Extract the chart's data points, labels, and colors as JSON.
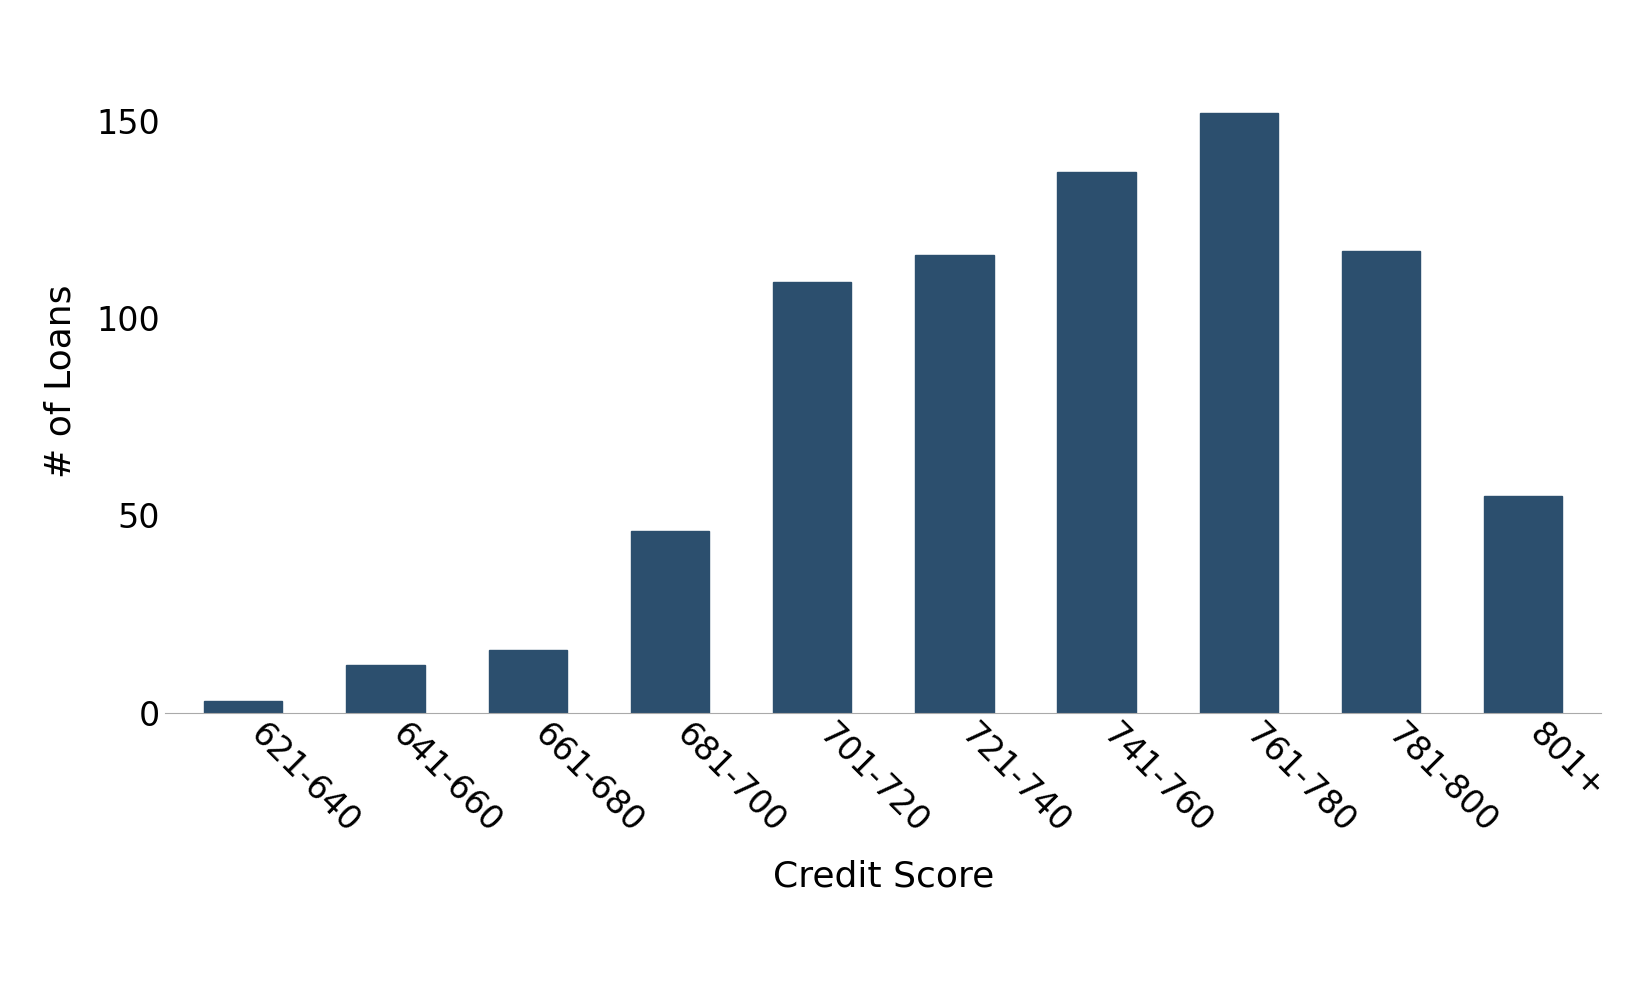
{
  "categories": [
    "621-640",
    "641-660",
    "661-680",
    "681-700",
    "701-720",
    "721-740",
    "741-760",
    "761-780",
    "781-800",
    "801+"
  ],
  "values": [
    3,
    12,
    16,
    46,
    109,
    116,
    137,
    152,
    117,
    55
  ],
  "bar_color": "#2C4F6E",
  "xlabel": "Credit Score",
  "ylabel": "# of Loans",
  "xlabel_fontsize": 26,
  "ylabel_fontsize": 26,
  "tick_fontsize": 24,
  "yticks": [
    0,
    50,
    100,
    150
  ],
  "ylim": [
    0,
    168
  ],
  "background_color": "#FFFFFF",
  "bar_width": 0.55,
  "spine_color": "#AAAAAA"
}
